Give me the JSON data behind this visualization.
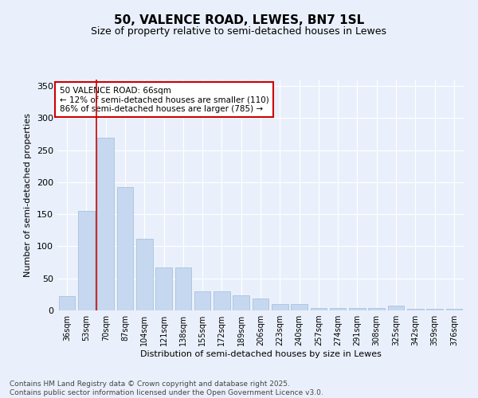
{
  "title": "50, VALENCE ROAD, LEWES, BN7 1SL",
  "subtitle": "Size of property relative to semi-detached houses in Lewes",
  "xlabel": "Distribution of semi-detached houses by size in Lewes",
  "ylabel": "Number of semi-detached properties",
  "categories": [
    "36sqm",
    "53sqm",
    "70sqm",
    "87sqm",
    "104sqm",
    "121sqm",
    "138sqm",
    "155sqm",
    "172sqm",
    "189sqm",
    "206sqm",
    "223sqm",
    "240sqm",
    "257sqm",
    "274sqm",
    "291sqm",
    "308sqm",
    "325sqm",
    "342sqm",
    "359sqm",
    "376sqm"
  ],
  "values": [
    22,
    155,
    270,
    193,
    112,
    67,
    67,
    30,
    30,
    24,
    19,
    10,
    10,
    4,
    4,
    4,
    4,
    7,
    3,
    3,
    2
  ],
  "bar_color": "#c5d8f0",
  "bar_edge_color": "#a0bcd8",
  "vline_x": 1.5,
  "vline_color": "#cc0000",
  "annotation_text": "50 VALENCE ROAD: 66sqm\n← 12% of semi-detached houses are smaller (110)\n86% of semi-detached houses are larger (785) →",
  "footer": "Contains HM Land Registry data © Crown copyright and database right 2025.\nContains public sector information licensed under the Open Government Licence v3.0.",
  "ylim": [
    0,
    360
  ],
  "yticks": [
    0,
    50,
    100,
    150,
    200,
    250,
    300,
    350
  ],
  "bg_color": "#eaf0fb",
  "plot_bg_color": "#eaf0fb",
  "title_fontsize": 11,
  "subtitle_fontsize": 9,
  "tick_fontsize": 7,
  "label_fontsize": 8,
  "footer_fontsize": 6.5
}
